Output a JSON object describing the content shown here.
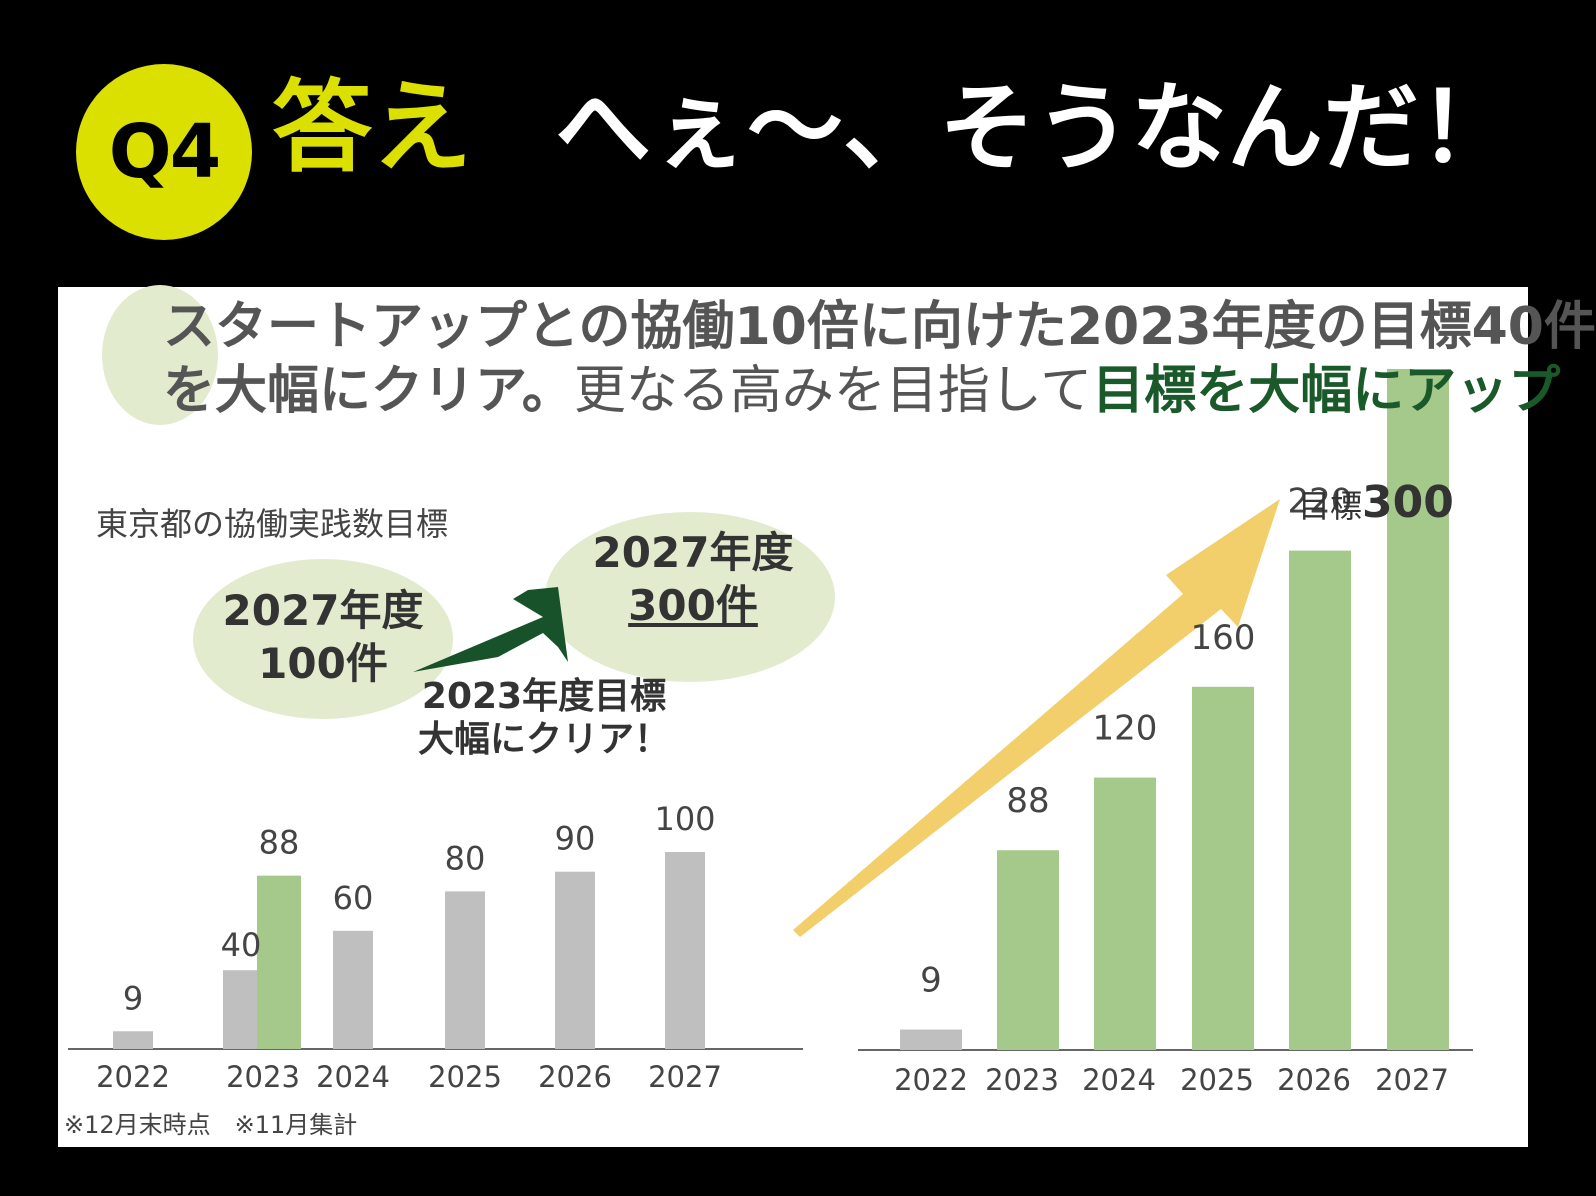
{
  "header": {
    "badge": "Q4",
    "answer": "答え",
    "exclamation": "へぇ～、そうなんだ！"
  },
  "colors": {
    "badge": "#dce000",
    "bar_grey": "#bfbfbf",
    "bar_green": "#a5c98b",
    "arrow_dark": "#17522b",
    "arrow_yellow": "#f2cf6b",
    "ellipse": "#e3ebcf"
  },
  "headline": {
    "line1": "スタートアップとの協働10倍に向けた2023年度の目標40件",
    "line2_a": "を大幅にクリア。",
    "line2_b": "更なる高みを目指して",
    "line2_c": "目標を大幅にアップ"
  },
  "left_panel": {
    "subtitle": "東京都の協働実践数目標",
    "old_target": {
      "line1": "2027年度",
      "line2": "100件"
    },
    "new_target": {
      "line1": "2027年度",
      "line2": "300件"
    },
    "note_line1": "2023年度目標",
    "note_line2": "大幅にクリア！",
    "footnote": "※12月末時点　※11月集計"
  },
  "right_panel": {
    "goal_prefix": "目標",
    "goal_value": "300"
  },
  "chart_data": [
    {
      "type": "bar",
      "categories": [
        "2022",
        "2023",
        "2024",
        "2025",
        "2026",
        "2027"
      ],
      "series": [
        {
          "values": [
            9,
            40,
            60,
            80,
            90,
            100
          ],
          "color": "#bfbfbf"
        },
        {
          "values": [
            null,
            88,
            null,
            null,
            null,
            null
          ],
          "color": "#a5c98b"
        }
      ],
      "data_labels": [
        "9",
        "40",
        "88",
        "60",
        "80",
        "90",
        "100"
      ],
      "ylim": [
        0,
        110
      ],
      "grid": false
    },
    {
      "type": "bar",
      "categories": [
        "2022",
        "2023",
        "2024",
        "2025",
        "2026",
        "2027"
      ],
      "series": [
        {
          "values": [
            9,
            88,
            120,
            160,
            220,
            300
          ],
          "colors": [
            "#bfbfbf",
            "#a5c98b",
            "#a5c98b",
            "#a5c98b",
            "#a5c98b",
            "#a5c98b"
          ]
        }
      ],
      "ylim": [
        0,
        300
      ],
      "grid": false
    }
  ]
}
